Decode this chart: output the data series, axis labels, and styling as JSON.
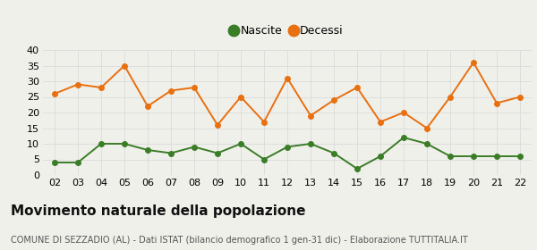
{
  "years": [
    "02",
    "03",
    "04",
    "05",
    "06",
    "07",
    "08",
    "09",
    "10",
    "11",
    "12",
    "13",
    "14",
    "15",
    "16",
    "17",
    "18",
    "19",
    "20",
    "21",
    "22"
  ],
  "nascite": [
    4,
    4,
    10,
    10,
    8,
    7,
    9,
    7,
    10,
    5,
    9,
    10,
    7,
    2,
    6,
    12,
    10,
    6,
    6,
    6,
    6
  ],
  "decessi": [
    26,
    29,
    28,
    35,
    22,
    27,
    28,
    16,
    25,
    17,
    31,
    19,
    24,
    28,
    17,
    20,
    15,
    25,
    36,
    23,
    25
  ],
  "nascite_color": "#3a7d27",
  "decessi_color": "#e87010",
  "background_color": "#f0f0eb",
  "plot_bg_color": "#f0f0eb",
  "grid_color": "#dddddd",
  "ylim": [
    0,
    40
  ],
  "yticks": [
    0,
    5,
    10,
    15,
    20,
    25,
    30,
    35,
    40
  ],
  "title": "Movimento naturale della popolazione",
  "subtitle": "COMUNE DI SEZZADIO (AL) - Dati ISTAT (bilancio demografico 1 gen-31 dic) - Elaborazione TUTTITALIA.IT",
  "legend_nascite": "Nascite",
  "legend_decessi": "Decessi",
  "marker_size": 4,
  "linewidth": 1.4,
  "tick_fontsize": 8,
  "title_fontsize": 11,
  "subtitle_fontsize": 7
}
